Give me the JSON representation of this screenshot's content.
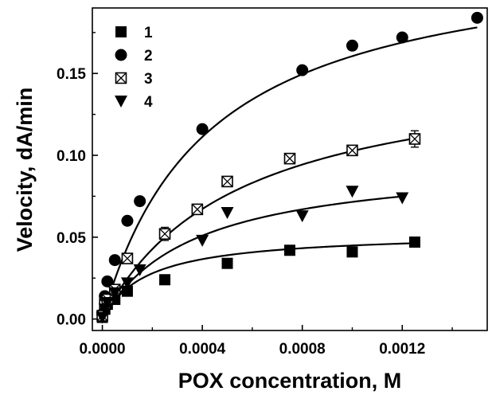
{
  "chart_data": {
    "type": "scatter",
    "title": "",
    "xlabel": "POX concentration, M",
    "ylabel": "Velocity, dA/min",
    "xlim": [
      -4e-05,
      0.00154
    ],
    "ylim": [
      -0.007,
      0.19
    ],
    "xticks": [
      0,
      0.0004,
      0.0008,
      0.0012
    ],
    "xtick_labels": [
      "0.0000",
      "0.0004",
      "0.0008",
      "0.0012"
    ],
    "yticks": [
      0,
      0.05,
      0.1,
      0.15
    ],
    "ytick_labels": [
      "0.00",
      "0.05",
      "0.10",
      "0.15"
    ],
    "legend_position": "top-left",
    "grid": false,
    "series": [
      {
        "name": "1",
        "marker": "square-filled",
        "points": [
          [
            0,
            0.001
          ],
          [
            1e-05,
            0.006
          ],
          [
            2e-05,
            0.009
          ],
          [
            5e-05,
            0.012
          ],
          [
            0.0001,
            0.017
          ],
          [
            0.00025,
            0.024
          ],
          [
            0.0005,
            0.034
          ],
          [
            0.00075,
            0.042
          ],
          [
            0.001,
            0.041
          ],
          [
            0.00125,
            0.047
          ]
        ],
        "fit": {
          "vmax": 0.053,
          "km": 0.00018
        }
      },
      {
        "name": "2",
        "marker": "circle-filled",
        "points": [
          [
            0,
            0.003
          ],
          [
            1e-05,
            0.014
          ],
          [
            2e-05,
            0.023
          ],
          [
            5e-05,
            0.036
          ],
          [
            0.0001,
            0.06
          ],
          [
            0.00015,
            0.072
          ],
          [
            0.0004,
            0.116
          ],
          [
            0.0008,
            0.152
          ],
          [
            0.001,
            0.167
          ],
          [
            0.0012,
            0.172
          ],
          [
            0.0015,
            0.184
          ]
        ],
        "fit": {
          "vmax": 0.228,
          "km": 0.00042
        }
      },
      {
        "name": "3",
        "marker": "square-crossed",
        "points": [
          [
            0,
            0.002
          ],
          [
            1e-05,
            0.009
          ],
          [
            2e-05,
            0.012
          ],
          [
            5e-05,
            0.018
          ],
          [
            0.0001,
            0.037
          ],
          [
            0.00025,
            0.052
          ],
          [
            0.00038,
            0.067
          ],
          [
            0.0005,
            0.084
          ],
          [
            0.00075,
            0.098
          ],
          [
            0.001,
            0.103
          ],
          [
            0.00125,
            0.11
          ]
        ],
        "error_bars": [
          0.002,
          0.002,
          0.002,
          0.002,
          0.003,
          0.004,
          0.003,
          0.002,
          0.002,
          0.002,
          0.005
        ],
        "fit": {
          "vmax": 0.158,
          "km": 0.00054
        }
      },
      {
        "name": "4",
        "marker": "triangle-down-filled",
        "points": [
          [
            0,
            0.001
          ],
          [
            1e-05,
            0.006
          ],
          [
            2e-05,
            0.01
          ],
          [
            5e-05,
            0.016
          ],
          [
            0.0001,
            0.022
          ],
          [
            0.00015,
            0.03
          ],
          [
            0.0004,
            0.048
          ],
          [
            0.0005,
            0.065
          ],
          [
            0.0008,
            0.063
          ],
          [
            0.001,
            0.078
          ],
          [
            0.0012,
            0.074
          ]
        ],
        "fit": {
          "vmax": 0.098,
          "km": 0.00037
        }
      }
    ],
    "legend": [
      {
        "label": "1",
        "marker": "square-filled"
      },
      {
        "label": "2",
        "marker": "circle-filled"
      },
      {
        "label": "3",
        "marker": "square-crossed"
      },
      {
        "label": "4",
        "marker": "triangle-down-filled"
      }
    ],
    "color": "#000000"
  }
}
